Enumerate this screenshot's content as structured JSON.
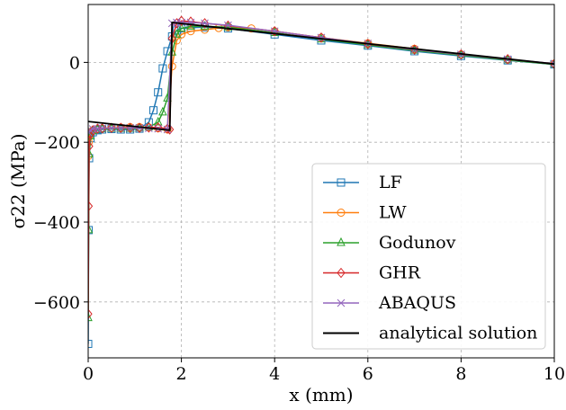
{
  "chart_data": {
    "type": "line",
    "xlabel": "x (mm)",
    "ylabel": "σ22 (MPa)",
    "xlim": [
      0,
      10
    ],
    "ylim": [
      -740,
      145
    ],
    "x_ticks": [
      0,
      2,
      4,
      6,
      8,
      10
    ],
    "x_tick_labels": [
      "0",
      "2",
      "4",
      "6",
      "8",
      "10"
    ],
    "y_ticks": [
      0,
      -200,
      -400,
      -600
    ],
    "y_tick_labels": [
      "0",
      "−200",
      "−400",
      "−600"
    ],
    "grid": true,
    "legend_position": "lower-right",
    "series": [
      {
        "name": "LF",
        "color": "#1f77b4",
        "marker": "square",
        "x": [
          0,
          0.01,
          0.02,
          0.05,
          0.1,
          0.2,
          0.3,
          0.5,
          0.7,
          0.9,
          1.1,
          1.3,
          1.4,
          1.5,
          1.6,
          1.7,
          1.8,
          1.9,
          2.0,
          2.2,
          2.5,
          3.0,
          4.0,
          5.0,
          6.0,
          7.0,
          8.0,
          9.0,
          10.0
        ],
        "y": [
          -705,
          -420,
          -240,
          -190,
          -175,
          -170,
          -168,
          -167,
          -168,
          -168,
          -166,
          -150,
          -120,
          -75,
          -15,
          28,
          65,
          80,
          85,
          87,
          88,
          85,
          70,
          55,
          42,
          28,
          16,
          5,
          -5
        ]
      },
      {
        "name": "LW",
        "color": "#ff7f0e",
        "marker": "circle",
        "x": [
          0,
          0.01,
          0.02,
          0.05,
          0.1,
          0.2,
          0.3,
          0.5,
          0.7,
          0.9,
          1.1,
          1.3,
          1.5,
          1.7,
          1.8,
          1.9,
          2.0,
          2.2,
          2.5,
          2.8,
          3.0,
          3.5,
          4.0,
          5.0,
          6.0,
          7.0,
          8.0,
          9.0,
          10.0
        ],
        "y": [
          -235,
          -200,
          -185,
          -175,
          -170,
          -167,
          -166,
          -164,
          -163,
          -162,
          -162,
          -163,
          -165,
          -168,
          -10,
          55,
          70,
          78,
          82,
          86,
          88,
          85,
          78,
          62,
          48,
          34,
          20,
          7,
          -3
        ]
      },
      {
        "name": "Godunov",
        "color": "#2ca02c",
        "marker": "triangle",
        "x": [
          0,
          0.01,
          0.02,
          0.05,
          0.1,
          0.2,
          0.3,
          0.5,
          0.7,
          0.9,
          1.1,
          1.3,
          1.5,
          1.6,
          1.7,
          1.8,
          1.9,
          2.0,
          2.2,
          2.5,
          3.0,
          4.0,
          5.0,
          6.0,
          7.0,
          8.0,
          9.0,
          10.0
        ],
        "y": [
          -640,
          -420,
          -230,
          -185,
          -172,
          -168,
          -167,
          -166,
          -166,
          -166,
          -165,
          -162,
          -150,
          -125,
          -90,
          25,
          70,
          85,
          90,
          90,
          88,
          74,
          58,
          44,
          30,
          18,
          6,
          -5
        ]
      },
      {
        "name": "GHR",
        "color": "#d62728",
        "marker": "diamond",
        "x": [
          0,
          0.01,
          0.02,
          0.05,
          0.1,
          0.2,
          0.3,
          0.5,
          0.7,
          0.9,
          1.1,
          1.3,
          1.5,
          1.7,
          1.75,
          1.8,
          1.9,
          2.0,
          2.2,
          2.5,
          3.0,
          4.0,
          5.0,
          6.0,
          7.0,
          8.0,
          9.0,
          10.0
        ],
        "y": [
          -630,
          -360,
          -210,
          -180,
          -170,
          -166,
          -165,
          -164,
          -164,
          -164,
          -164,
          -163,
          -163,
          -166,
          -168,
          60,
          98,
          104,
          102,
          98,
          92,
          78,
          62,
          46,
          32,
          20,
          8,
          -4
        ]
      },
      {
        "name": "ABAQUS",
        "color": "#9467bd",
        "marker": "x",
        "x": [
          0,
          0.05,
          0.1,
          0.2,
          0.3,
          0.5,
          0.7,
          0.9,
          1.1,
          1.3,
          1.5,
          1.7,
          1.8,
          1.9,
          2.0,
          2.2,
          2.5,
          3.0,
          4.0,
          5.0,
          6.0,
          7.0,
          8.0,
          9.0,
          10.0
        ],
        "y": [
          -175,
          -170,
          -167,
          -166,
          -165,
          -164,
          -164,
          -164,
          -164,
          -165,
          -166,
          -168,
          98,
          100,
          100,
          100,
          98,
          93,
          78,
          62,
          47,
          32,
          20,
          8,
          -3
        ]
      },
      {
        "name": "analytical solution",
        "color": "#000000",
        "marker": "none",
        "x": [
          0,
          1.75,
          1.75,
          1.8,
          10.0
        ],
        "y": [
          -148,
          -170,
          -170,
          100,
          -4
        ]
      }
    ]
  }
}
